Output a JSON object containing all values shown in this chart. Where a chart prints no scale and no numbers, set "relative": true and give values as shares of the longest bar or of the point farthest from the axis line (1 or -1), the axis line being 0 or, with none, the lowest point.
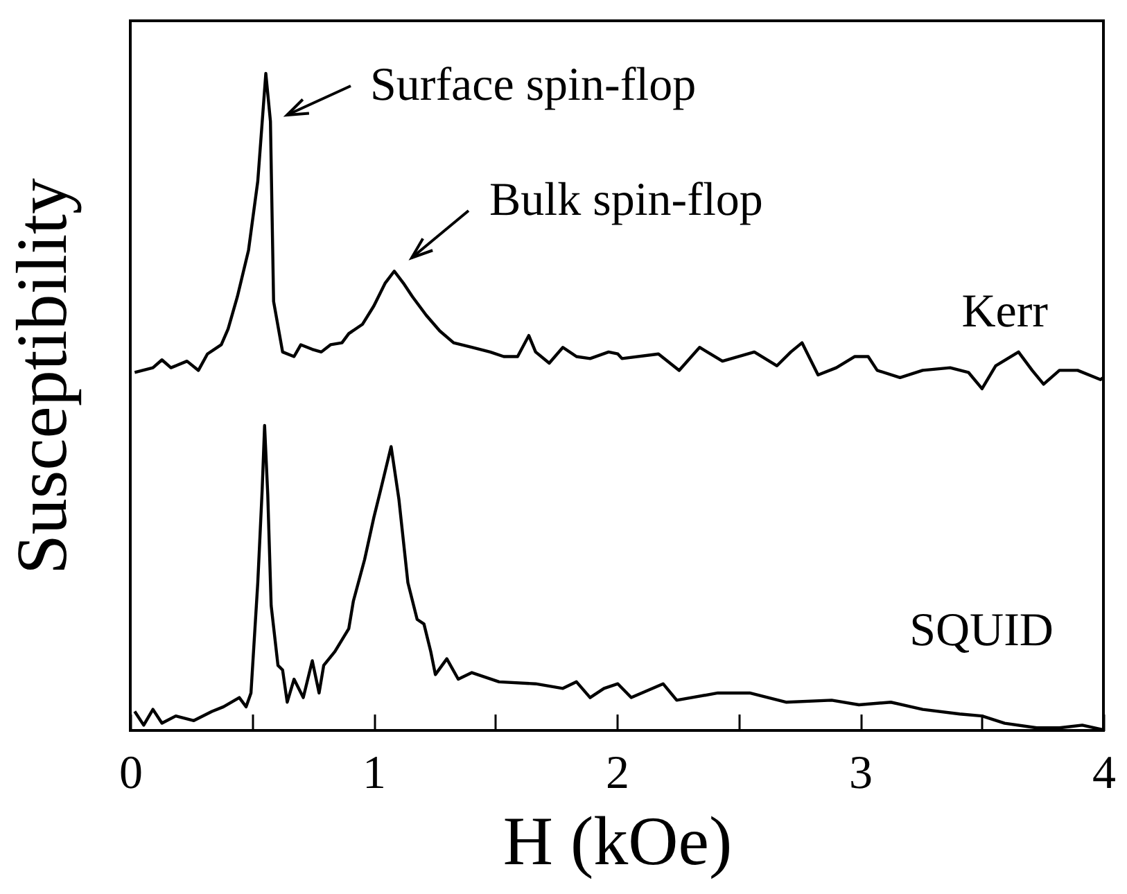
{
  "chart_data": {
    "type": "line",
    "relative": true,
    "xlabel": "H  (kOe)",
    "ylabel": "Susceptibility",
    "xlim": [
      0,
      4
    ],
    "xticks": [
      0,
      {
        "value": 0.5,
        "label": null
      },
      1,
      {
        "value": 1.5,
        "label": null
      },
      2,
      {
        "value": 2.5,
        "label": null
      },
      3,
      {
        "value": 3.5,
        "label": null
      },
      4
    ],
    "grid": false,
    "marker": "none",
    "line_style": "solid",
    "annotations": [
      "Surface spin-flop",
      "Bulk spin-flop"
    ],
    "series": [
      {
        "name": "Kerr",
        "color": "#000000",
        "x": [
          0.018,
          0.093,
          0.13,
          0.167,
          0.233,
          0.28,
          0.317,
          0.374,
          0.402,
          0.44,
          0.486,
          0.524,
          0.557,
          0.576,
          0.589,
          0.626,
          0.673,
          0.701,
          0.748,
          0.785,
          0.823,
          0.87,
          0.898,
          0.954,
          1.001,
          1.048,
          1.085,
          1.122,
          1.16,
          1.216,
          1.272,
          1.329,
          1.404,
          1.479,
          1.535,
          1.592,
          1.638,
          1.666,
          1.722,
          1.778,
          1.834,
          1.89,
          1.966,
          2.004,
          2.021,
          2.171,
          2.256,
          2.34,
          2.434,
          2.565,
          2.658,
          2.715,
          2.761,
          2.827,
          2.902,
          2.977,
          3.033,
          3.07,
          3.164,
          3.257,
          3.37,
          3.445,
          3.501,
          3.557,
          3.651,
          3.707,
          3.754,
          3.819,
          3.894,
          3.988,
          4.0
        ],
        "values": [
          0.545,
          0.552,
          0.564,
          0.552,
          0.562,
          0.548,
          0.573,
          0.587,
          0.611,
          0.66,
          0.731,
          0.836,
          1.0,
          0.927,
          0.653,
          0.576,
          0.569,
          0.587,
          0.58,
          0.576,
          0.587,
          0.59,
          0.604,
          0.618,
          0.646,
          0.681,
          0.699,
          0.681,
          0.66,
          0.632,
          0.608,
          0.59,
          0.583,
          0.576,
          0.569,
          0.569,
          0.601,
          0.576,
          0.559,
          0.583,
          0.569,
          0.566,
          0.576,
          0.573,
          0.566,
          0.573,
          0.548,
          0.583,
          0.562,
          0.576,
          0.555,
          0.576,
          0.59,
          0.541,
          0.552,
          0.569,
          0.569,
          0.548,
          0.537,
          0.548,
          0.552,
          0.545,
          0.52,
          0.555,
          0.576,
          0.548,
          0.527,
          0.548,
          0.548,
          0.534,
          0.537
        ]
      },
      {
        "name": "SQUID",
        "color": "#000000",
        "x": [
          0.018,
          0.055,
          0.093,
          0.13,
          0.187,
          0.261,
          0.336,
          0.383,
          0.448,
          0.476,
          0.496,
          0.524,
          0.542,
          0.552,
          0.565,
          0.579,
          0.607,
          0.626,
          0.645,
          0.673,
          0.711,
          0.748,
          0.776,
          0.795,
          0.841,
          0.898,
          0.917,
          0.963,
          1.001,
          1.029,
          1.072,
          1.104,
          1.141,
          1.179,
          1.207,
          1.235,
          1.254,
          1.301,
          1.348,
          1.404,
          1.516,
          1.666,
          1.778,
          1.834,
          1.89,
          1.947,
          2.004,
          2.059,
          2.19,
          2.246,
          2.415,
          2.546,
          2.695,
          2.883,
          2.995,
          3.126,
          3.257,
          3.409,
          3.501,
          3.594,
          3.726,
          3.819,
          3.913,
          4.0
        ],
        "values": [
          0.029,
          0.008,
          0.032,
          0.011,
          0.022,
          0.015,
          0.029,
          0.036,
          0.05,
          0.036,
          0.057,
          0.225,
          0.366,
          0.464,
          0.359,
          0.19,
          0.099,
          0.092,
          0.043,
          0.078,
          0.05,
          0.106,
          0.057,
          0.099,
          0.12,
          0.155,
          0.197,
          0.26,
          0.324,
          0.366,
          0.432,
          0.352,
          0.225,
          0.169,
          0.162,
          0.12,
          0.085,
          0.109,
          0.078,
          0.088,
          0.074,
          0.071,
          0.064,
          0.074,
          0.05,
          0.064,
          0.071,
          0.05,
          0.071,
          0.046,
          0.057,
          0.057,
          0.043,
          0.046,
          0.039,
          0.043,
          0.032,
          0.025,
          0.022,
          0.011,
          0.004,
          0.004,
          0.008,
          0.001
        ]
      }
    ]
  }
}
